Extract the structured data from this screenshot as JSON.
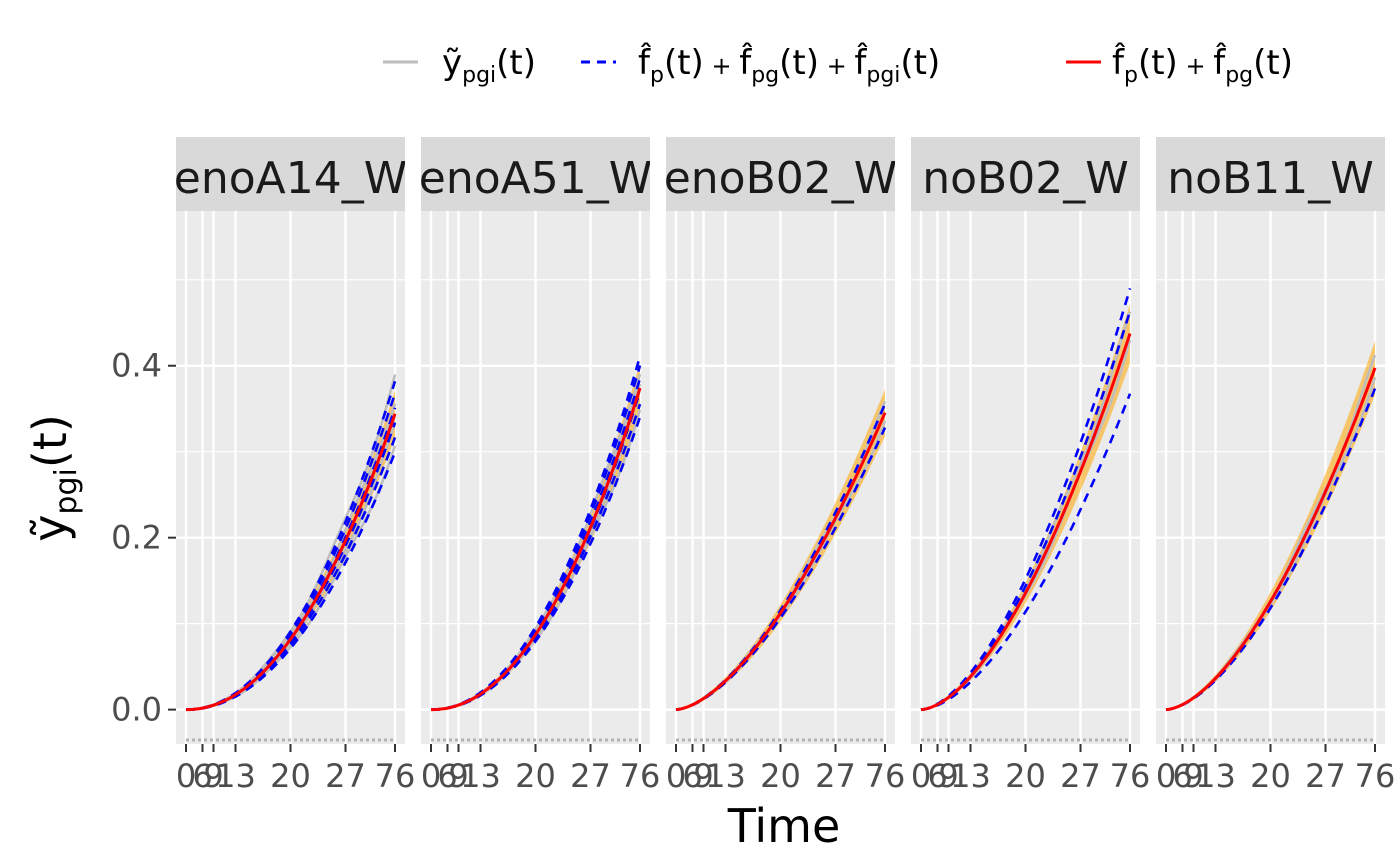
{
  "chart_data": {
    "type": "line",
    "xlabel": "Time",
    "ylabel": {
      "base": "y",
      "accent": "~",
      "subscript": "pgi",
      "suffix": "(t)"
    },
    "xlim": [
      0,
      76
    ],
    "ylim": [
      -0.04,
      0.58
    ],
    "y_ticks": [
      0.0,
      0.2,
      0.4
    ],
    "y_tick_labels": [
      "0.0",
      "0.2",
      "0.4"
    ],
    "x_ticks": [
      0,
      6,
      9,
      13,
      20,
      27,
      76
    ],
    "x_tick_labels": [
      "0",
      "6",
      "9",
      "13",
      "20",
      "27",
      "76"
    ],
    "x_tick_positions": [
      0,
      6,
      10,
      18,
      38,
      58,
      76
    ],
    "grid": true,
    "legend": {
      "position": "top",
      "entries": [
        {
          "id": "observed",
          "style": "solid",
          "color": "#bebebe",
          "main": "y",
          "accent": "~",
          "sub": "pgi",
          "suffix": "(t)",
          "text": "ỹpgi(t)"
        },
        {
          "id": "individual",
          "style": "dashed",
          "color": "#0000ff",
          "text": "f̂p(t) + f̂pg(t) + f̂pgi(t)",
          "parts": [
            {
              "main": "f",
              "sub": "p",
              "suffix": "(t)"
            },
            {
              "main": "f",
              "sub": "pg",
              "suffix": "(t)"
            },
            {
              "main": "f",
              "sub": "pgi",
              "suffix": "(t)"
            }
          ]
        },
        {
          "id": "group",
          "style": "solid",
          "color": "#ff0000",
          "text": "f̂p(t) + f̂pg(t)",
          "parts": [
            {
              "main": "f",
              "sub": "p",
              "suffix": "(t)"
            },
            {
              "main": "f",
              "sub": "pg",
              "suffix": "(t)"
            }
          ]
        }
      ]
    },
    "colors": {
      "observed": "#bebebe",
      "individual": "#0000ff",
      "group": "#ff0000",
      "band": "#ffa500",
      "panel_bg": "#ebebeb",
      "strip_bg": "#d9d9d9",
      "grid": "#ffffff"
    },
    "panels": [
      {
        "label": "enoA14_W",
        "group": {
          "a": 4.4e-05,
          "p": 2.07
        },
        "individual_scales": [
          0.87,
          0.92,
          0.97,
          1.02,
          1.07,
          1.11
        ],
        "observed_scales": [
          0.89,
          0.95,
          1.0,
          1.05,
          1.12
        ]
      },
      {
        "label": "enoA51_W",
        "group": {
          "a": 4.2e-05,
          "p": 2.1
        },
        "individual_scales": [
          0.91,
          0.95,
          0.99,
          1.03,
          1.07,
          1.1
        ],
        "observed_scales": [
          0.93,
          0.98,
          1.02,
          1.06
        ]
      },
      {
        "label": "enoB02_W",
        "group": {
          "a": 0.00031,
          "p": 1.62
        },
        "individual_scales": [
          0.95,
          1.03
        ],
        "observed_scales": [
          0.97,
          1.02
        ]
      },
      {
        "label": "noB02_W",
        "group": {
          "a": 0.00029,
          "p": 1.69
        },
        "individual_scales": [
          0.84,
          1.06,
          1.12
        ],
        "observed_scales": [
          0.98,
          1.04
        ]
      },
      {
        "label": "noB11_W",
        "group": {
          "a": 0.0003,
          "p": 1.66
        },
        "individual_scales": [
          0.94,
          1.0
        ],
        "observed_scales": [
          0.97,
          1.02
        ]
      }
    ]
  }
}
